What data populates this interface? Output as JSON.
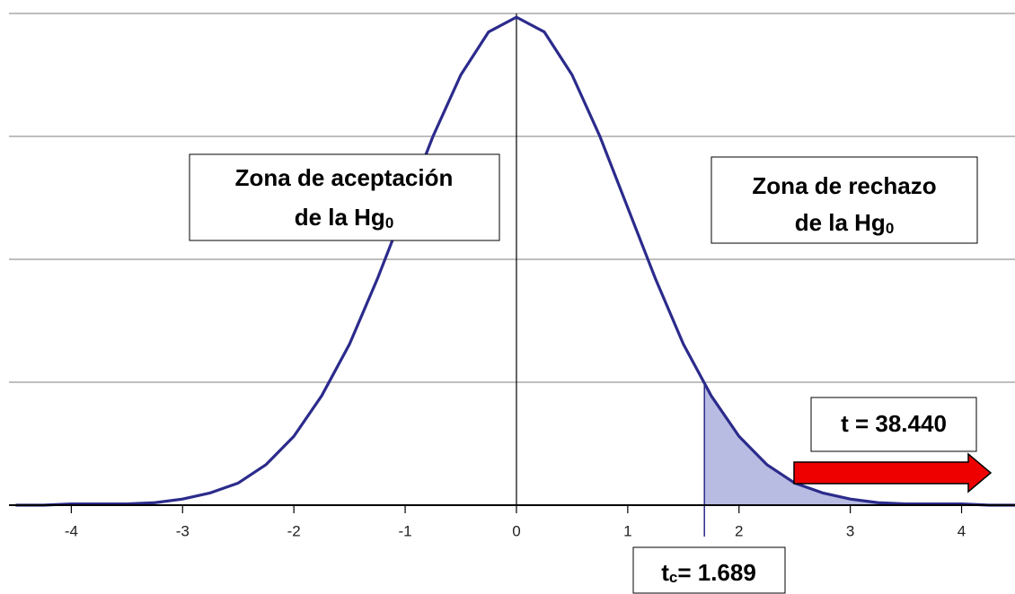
{
  "chart_data": {
    "type": "line",
    "x": [
      -4.5,
      -4.25,
      -4,
      -3.75,
      -3.5,
      -3.25,
      -3,
      -2.75,
      -2.5,
      -2.25,
      -2,
      -1.75,
      -1.5,
      -1.25,
      -1,
      -0.75,
      -0.5,
      -0.25,
      0,
      0.25,
      0.5,
      0.75,
      1,
      1.25,
      1.5,
      1.75,
      2,
      2.25,
      2.5,
      2.75,
      3,
      3.25,
      3.5,
      3.75,
      4,
      4.25,
      4.5
    ],
    "values": [
      0.0,
      0.0,
      0.001,
      0.001,
      0.001,
      0.002,
      0.005,
      0.01,
      0.018,
      0.033,
      0.056,
      0.089,
      0.131,
      0.184,
      0.242,
      0.3,
      0.35,
      0.385,
      0.397,
      0.385,
      0.35,
      0.3,
      0.242,
      0.184,
      0.131,
      0.089,
      0.056,
      0.033,
      0.018,
      0.01,
      0.005,
      0.002,
      0.001,
      0.001,
      0.001,
      0.0,
      0.0
    ],
    "color": "#2b2b8c",
    "shade_color": "#b8bce2",
    "xlim": [
      -4.56,
      4.48
    ],
    "xticks": [
      -4,
      -3,
      -2,
      -1,
      0,
      1,
      2,
      3,
      4
    ],
    "ylim": [
      0,
      0.4
    ],
    "yticks": [
      0,
      0.1,
      0.2,
      0.3,
      0.4
    ],
    "grid": true,
    "acceptance_zone": {
      "lines": [
        "Zona de aceptación",
        "de la Hg"
      ],
      "subscript": "0"
    },
    "rejection_zone": {
      "lines": [
        "Zona de rechazo",
        "de la Hg"
      ],
      "subscript": "0"
    },
    "critical_value": {
      "symbol": "t",
      "subscript": "c",
      "label": "= 1.689",
      "value": 1.689
    },
    "t_statistic": {
      "label": "t = 38.440",
      "value": 38.44,
      "arrow_color": "#ee0000"
    }
  }
}
